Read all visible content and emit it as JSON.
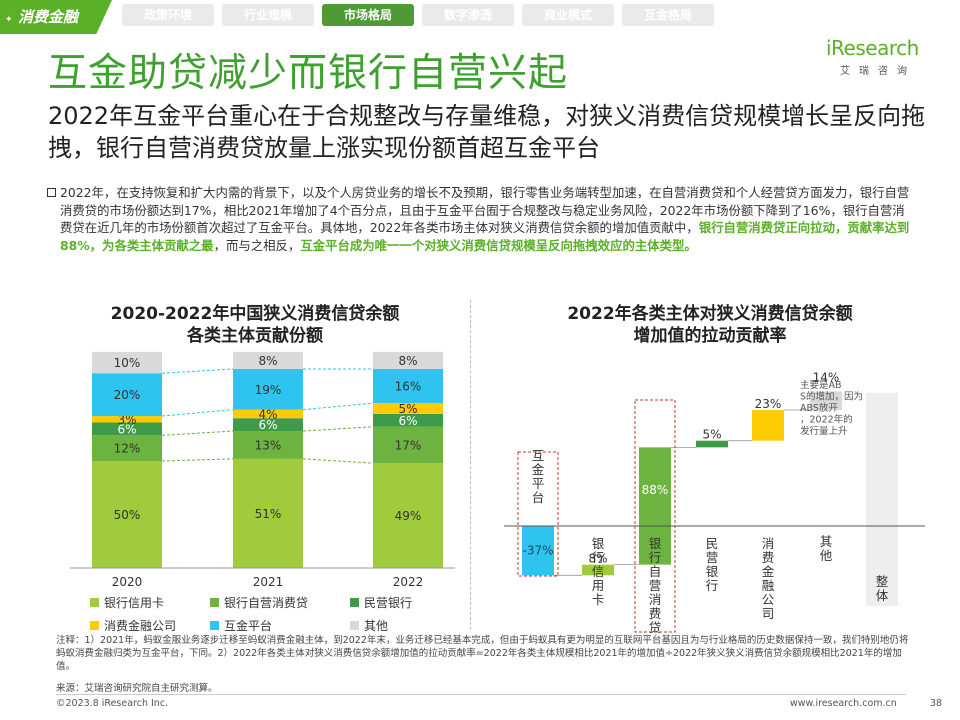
{
  "header": {
    "brand_tag": "消费金融",
    "tabs": [
      {
        "label": "政策环境",
        "active": false
      },
      {
        "label": "行业规模",
        "active": false
      },
      {
        "label": "市场格局",
        "active": true
      },
      {
        "label": "数字渗透",
        "active": false
      },
      {
        "label": "商业模式",
        "active": false
      },
      {
        "label": "互金格局",
        "active": false
      }
    ],
    "logo_main": "iResearch",
    "logo_sub": "艾瑞咨询"
  },
  "title": "互金助贷减少而银行自营兴起",
  "subtitle": "2022年互金平台重心在于合规整改与存量维稳，对狭义消费信贷规模增长呈反向拖拽，银行自营消费贷放量上涨实现份额首超互金平台",
  "bullet": {
    "plain": "2022年，在支持恢复和扩大内需的背景下，以及个人房贷业务的增长不及预期，银行零售业务端转型加速，在自营消费贷和个人经营贷方面发力，银行自营消费贷的市场份额达到17%，相比2021年增加了4个百分点，且由于互金平台囿于合规整改与稳定业务风险，2022年市场份额下降到了16%，银行自营消费贷在近几年的市场份额首次超过了互金平台。具体地，2022年各类市场主体对狭义消费信贷余额的增加值贡献中，",
    "highlight": "银行自营消费贷正向拉动，贡献率达到88%，为各类主体贡献之最",
    "plain2": "，而与之相反，",
    "highlight2": "互金平台成为唯一一个对狭义消费信贷规模呈反向拖拽效应的主体类型。"
  },
  "colors": {
    "bank_card": "#9fcb3c",
    "bank_self": "#6cb33f",
    "private_bank": "#3d9b4a",
    "consumer_finance": "#ffcb05",
    "fintech": "#2fc4ef",
    "other": "#d9d9d9"
  },
  "chart_data": [
    {
      "type": "bar",
      "stacked": true,
      "title": "2020-2022年中国狭义消费信贷余额各类主体贡献份额",
      "title_line1": "2020-2022年中国狭义消费信贷余额",
      "title_line2": "各类主体贡献份额",
      "categories": [
        "2020",
        "2021",
        "2022"
      ],
      "ylim": [
        0,
        100
      ],
      "series": [
        {
          "name": "银行信用卡",
          "values": [
            50,
            51,
            49
          ],
          "labels": [
            "50%",
            "51%",
            "49%"
          ]
        },
        {
          "name": "银行自营消费贷",
          "values": [
            12,
            13,
            17
          ],
          "labels": [
            "12%",
            "13%",
            "17%"
          ]
        },
        {
          "name": "民营银行",
          "values": [
            6,
            6,
            6
          ],
          "labels": [
            "6%",
            "6%",
            "6%"
          ]
        },
        {
          "name": "消费金融公司",
          "values": [
            3,
            4,
            5
          ],
          "labels": [
            "3%",
            "4%",
            "5%"
          ]
        },
        {
          "name": "互金平台",
          "values": [
            20,
            19,
            16
          ],
          "labels": [
            "20%",
            "19%",
            "16%"
          ]
        },
        {
          "name": "其他",
          "values": [
            10,
            8,
            8
          ],
          "labels": [
            "10%",
            "8%",
            "8%"
          ]
        }
      ],
      "legend_position": "bottom"
    },
    {
      "type": "bar",
      "waterfall": true,
      "title": "2022年各类主体对狭义消费信贷余额增加值的拉动贡献率",
      "title_line1": "2022年各类主体对狭义消费信贷余额",
      "title_line2": "增加值的拉动贡献率",
      "categories": [
        "互金平台",
        "银行信用卡",
        "银行自营消费贷",
        "民营银行",
        "消费金融公司",
        "其他",
        "整体"
      ],
      "values": [
        -37,
        8,
        88,
        5,
        23,
        14,
        100
      ],
      "labels": [
        "-37%",
        "8%",
        "88%",
        "5%",
        "23%",
        "14%",
        ""
      ],
      "annotation": "主要是ABS的增加，因为ABS放开，2022年的发行量上升"
    }
  ],
  "legend": [
    {
      "label": "银行信用卡",
      "color": "#9fcb3c"
    },
    {
      "label": "银行自营消费贷",
      "color": "#6cb33f"
    },
    {
      "label": "民营银行",
      "color": "#3d9b4a"
    },
    {
      "label": "消费金融公司",
      "color": "#ffcb05"
    },
    {
      "label": "互金平台",
      "color": "#2fc4ef"
    },
    {
      "label": "其他",
      "color": "#d9d9d9"
    }
  ],
  "footer": {
    "note": "注释：1）2021年，蚂蚁金服业务逐步迁移至蚂蚁消费金融主体，到2022年末，业务迁移已经基本完成，但由于蚂蚁具有更为明显的互联网平台基因且为与行业格局的历史数据保持一致，我们特别地仍将蚂蚁消费金融归类为互金平台，下同。2）2022年各类主体对狭义消费信贷余额增加值的拉动贡献率=2022年各类主体规模相比2021年的增加值÷2022年狭义狭义消费信贷余额规模相比2021年的增加值。",
    "source": "来源：艾瑞咨询研究院自主研究测算。",
    "copyright": "©2023.8 iResearch Inc.",
    "site": "www.iresearch.com.cn",
    "page": "38"
  }
}
